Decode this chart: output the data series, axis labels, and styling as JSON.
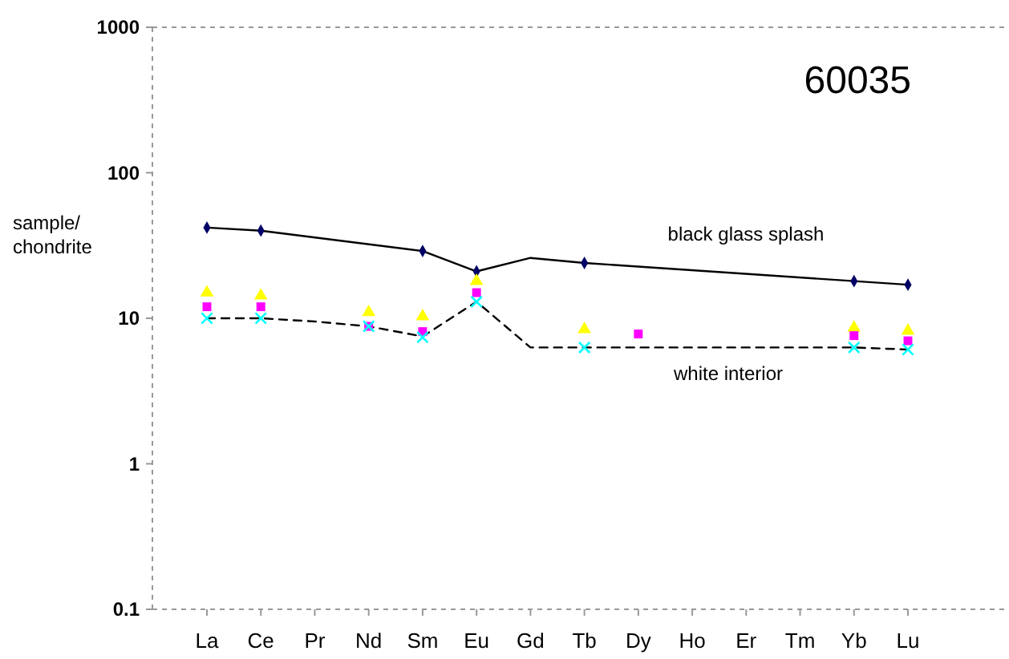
{
  "chart_data": {
    "type": "line",
    "title": "60035",
    "ylabel": "sample/ chondrite",
    "categories": [
      "La",
      "Ce",
      "Pr",
      "Nd",
      "Sm",
      "Eu",
      "Gd",
      "Tb",
      "Dy",
      "Ho",
      "Er",
      "Tm",
      "Yb",
      "Lu"
    ],
    "series": [
      {
        "color": "#000000",
        "marker": "none",
        "line_style": "solid",
        "values": [
          42,
          40,
          null,
          null,
          29,
          21,
          26,
          24,
          null,
          null,
          null,
          null,
          18,
          17
        ]
      },
      {
        "color": "#000000",
        "marker": "none",
        "line_style": "dashed",
        "values": [
          10,
          10,
          9.5,
          8.8,
          7.5,
          13,
          6.3,
          6.3,
          null,
          null,
          null,
          null,
          6.3,
          6.1
        ]
      },
      {
        "type": "scatter",
        "color": "#000066",
        "marker": "diamond",
        "values": [
          42,
          40,
          null,
          null,
          29,
          21,
          null,
          24,
          null,
          null,
          null,
          null,
          18,
          17
        ]
      },
      {
        "type": "scatter",
        "color": "#ffff00",
        "marker": "triangle",
        "values": [
          15,
          14.3,
          null,
          11,
          10.3,
          18,
          null,
          8.4,
          null,
          null,
          null,
          null,
          8.6,
          8.2
        ]
      },
      {
        "type": "scatter",
        "color": "#ff00ff",
        "marker": "square",
        "values": [
          12,
          12,
          null,
          8.8,
          8.1,
          15,
          null,
          null,
          7.8,
          null,
          null,
          null,
          7.6,
          7.0
        ]
      },
      {
        "type": "scatter",
        "color": "#00ffff",
        "marker": "cross",
        "values": [
          10,
          10,
          null,
          8.8,
          7.4,
          13,
          null,
          6.3,
          null,
          null,
          null,
          null,
          6.3,
          6.1
        ]
      }
    ],
    "log": "y",
    "ylim": [
      0.1,
      1000
    ],
    "yticks": [
      0.1,
      1,
      10,
      100,
      1000
    ],
    "annotations": [
      "black glass splash",
      "white interior"
    ]
  }
}
